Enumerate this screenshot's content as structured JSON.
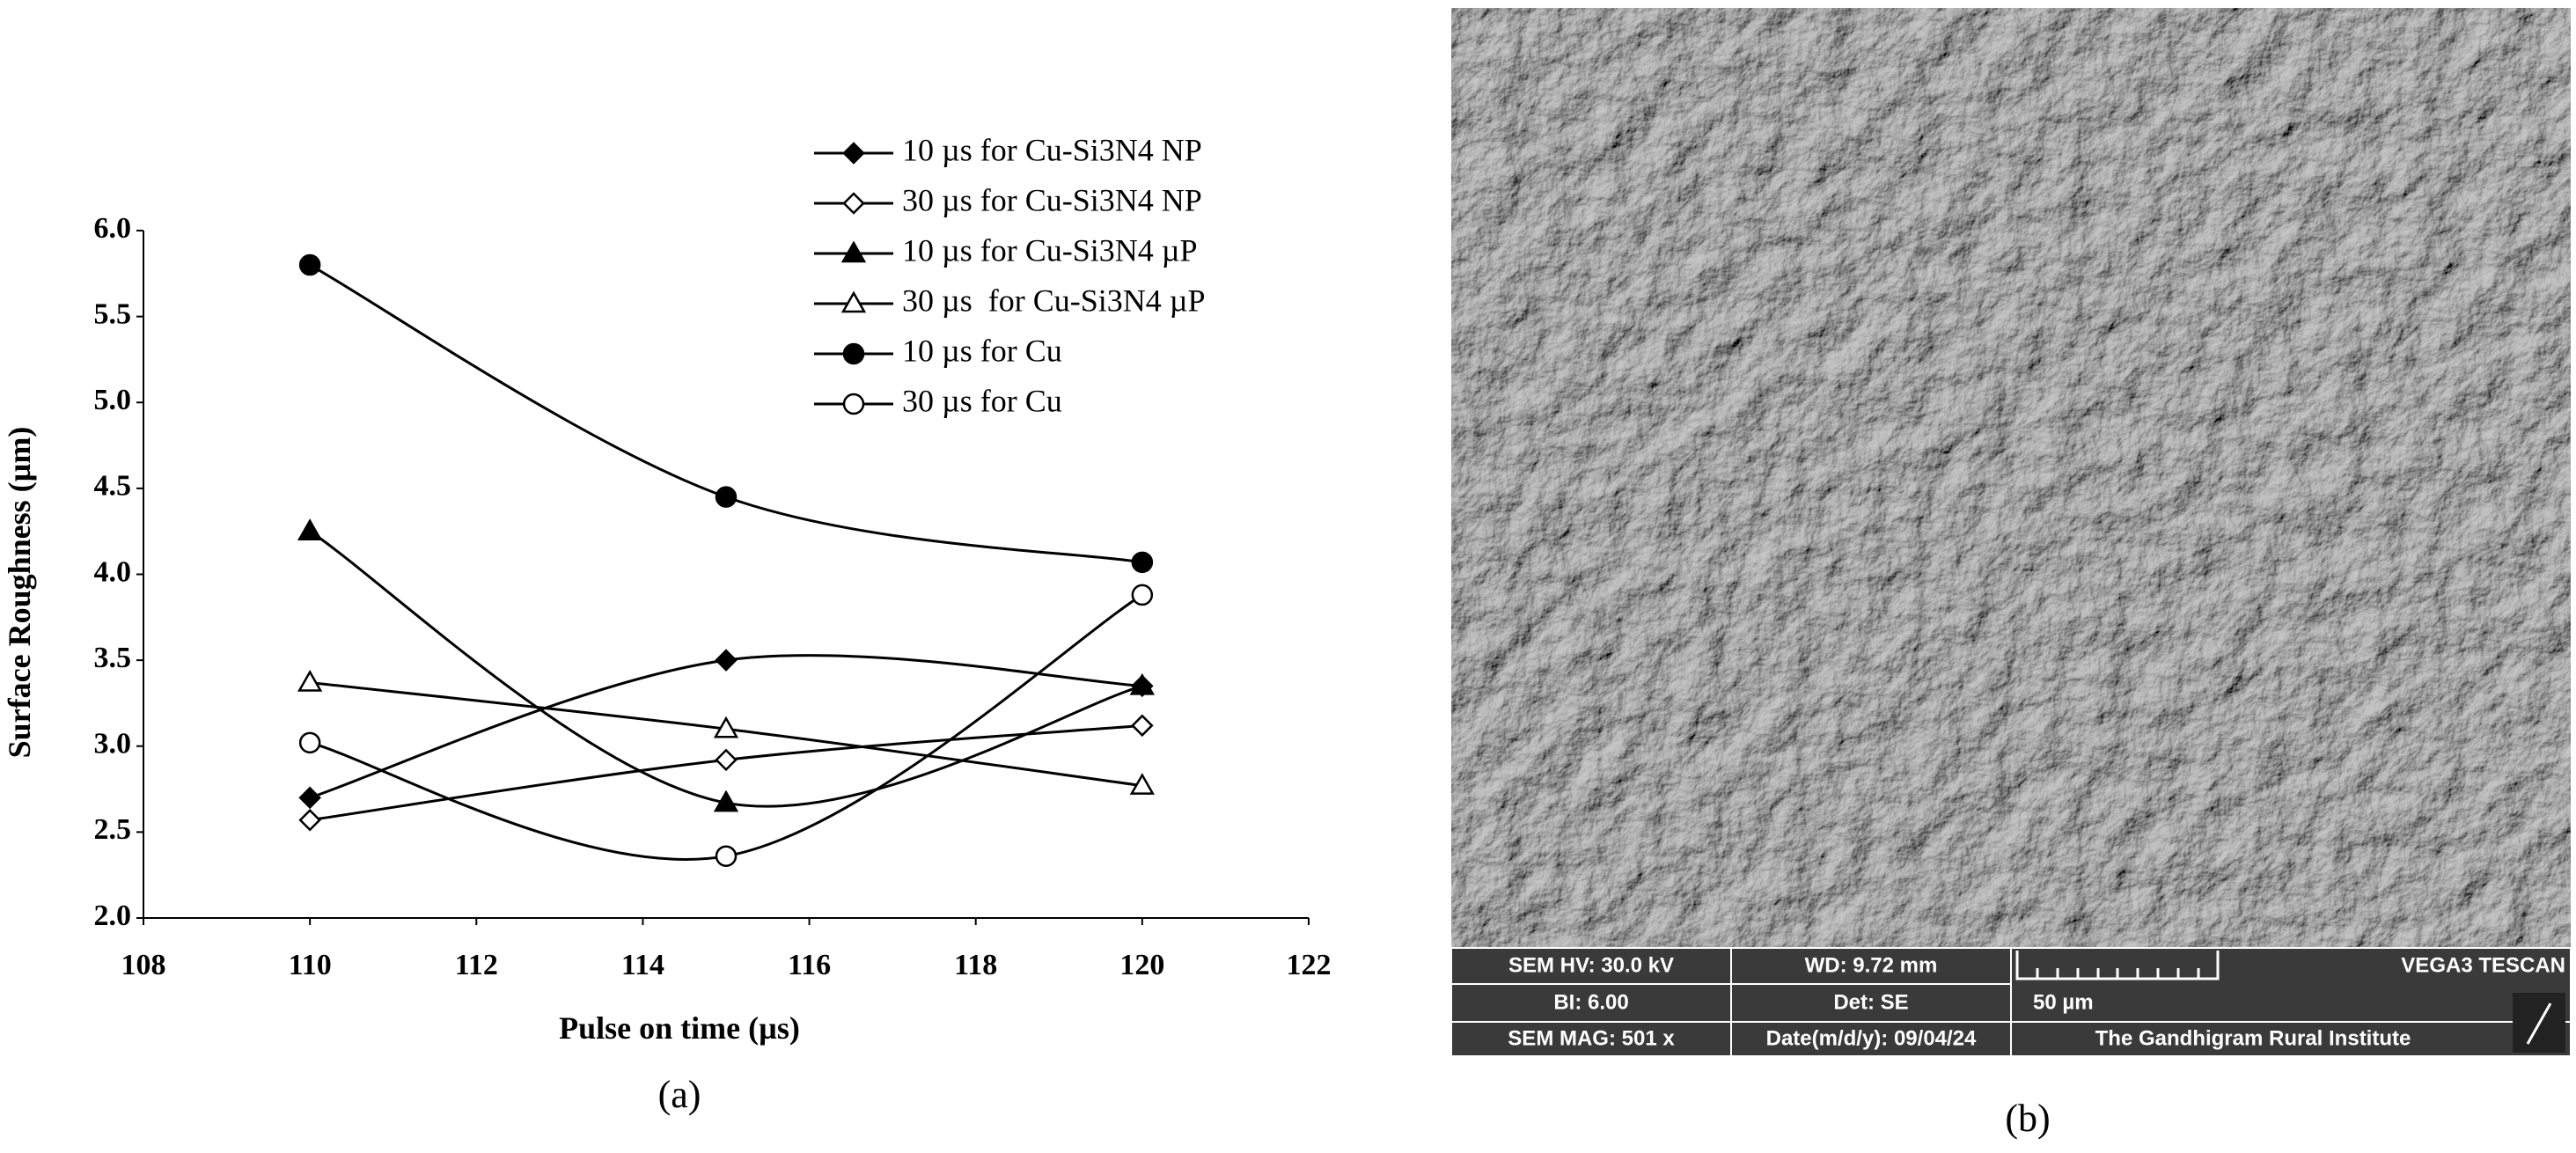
{
  "chart_data": {
    "type": "line",
    "xlabel": "Pulse on time (µs)",
    "ylabel": "Surface Roughness (µm)",
    "panel_label": "(a)",
    "x": [
      110,
      115,
      120
    ],
    "xlim": [
      108,
      122
    ],
    "xticks": [
      108,
      110,
      112,
      114,
      116,
      118,
      120,
      122
    ],
    "ylim": [
      2,
      6
    ],
    "yticks": [
      {
        "value": 2,
        "label": "2.0"
      },
      {
        "value": 2.5,
        "label": "2.5"
      },
      {
        "value": 3,
        "label": "3.0"
      },
      {
        "value": 3.5,
        "label": "3.5"
      },
      {
        "value": 4,
        "label": "4.0"
      },
      {
        "value": 4.5,
        "label": "4.5"
      },
      {
        "value": 5,
        "label": "5.0"
      },
      {
        "value": 5.5,
        "label": "5.5"
      },
      {
        "value": 6,
        "label": "6.0"
      }
    ],
    "smooth": true,
    "legend": "upper right",
    "series": [
      {
        "name": "10 µs for Cu-Si3N4 NP",
        "color": "#000000",
        "marker": "diamond",
        "filled": true,
        "values": [
          2.7,
          3.5,
          3.35
        ]
      },
      {
        "name": "30 µs for Cu-Si3N4 NP",
        "color": "#000000",
        "marker": "diamond",
        "filled": false,
        "values": [
          2.57,
          2.92,
          3.12
        ]
      },
      {
        "name": "10 µs for Cu-Si3N4 µP",
        "color": "#000000",
        "marker": "triangle",
        "filled": true,
        "values": [
          4.25,
          2.67,
          3.35
        ]
      },
      {
        "name": "30 µs  for Cu-Si3N4 µP",
        "color": "#000000",
        "marker": "triangle",
        "filled": false,
        "values": [
          3.37,
          3.1,
          2.77
        ]
      },
      {
        "name": "10 µs for Cu",
        "color": "#000000",
        "marker": "circle",
        "filled": true,
        "values": [
          5.8,
          4.45,
          4.07
        ]
      },
      {
        "name": "30 µs for Cu",
        "color": "#000000",
        "marker": "circle",
        "filled": false,
        "values": [
          3.02,
          2.36,
          3.88
        ]
      }
    ]
  },
  "image_panel": {
    "panel_label": "(b)",
    "info": {
      "hv": "SEM HV: 30.0 kV",
      "wd": "WD: 9.72 mm",
      "brand": "VEGA3 TESCAN",
      "bi": "BI: 6.00",
      "det": "Det: SE",
      "scale": "50 µm",
      "mag": "SEM MAG: 501 x",
      "date": "Date(m/d/y): 09/04/24",
      "institute": "The Gandhigram Rural Institute"
    }
  }
}
